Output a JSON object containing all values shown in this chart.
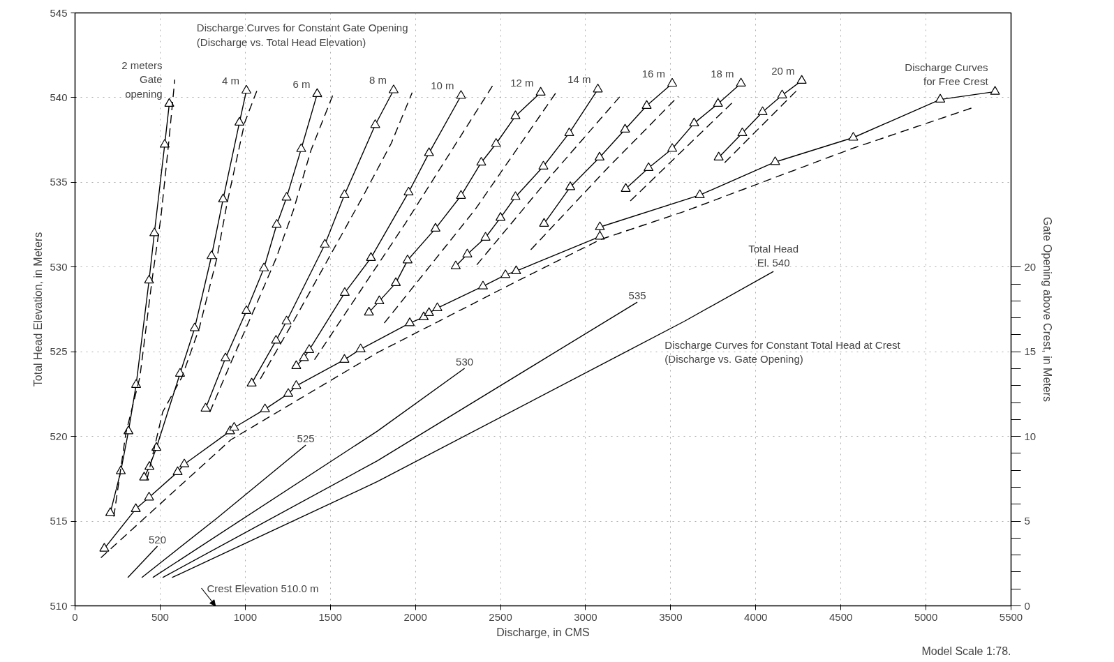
{
  "chart_data": {
    "type": "line",
    "xlabel": "Discharge, in CMS",
    "ylabel": "Total Head Elevation, in Meters",
    "y2label": "Gate Opening above Crest, in Meters",
    "xlim": [
      0,
      5500
    ],
    "xticks": [
      0,
      500,
      1000,
      1500,
      2000,
      2500,
      3000,
      3500,
      4000,
      4500,
      5000,
      5500
    ],
    "ylim": [
      510,
      545
    ],
    "yticks": [
      510,
      515,
      520,
      525,
      530,
      535,
      540,
      545
    ],
    "y2lim": [
      0,
      35
    ],
    "y2ticks": [
      0,
      {
        "value": 1,
        "label": null
      },
      {
        "value": 2,
        "label": null
      },
      {
        "value": 3,
        "label": null
      },
      {
        "value": 4,
        "label": null
      },
      5,
      {
        "value": 6,
        "label": null
      },
      {
        "value": 7,
        "label": null
      },
      {
        "value": 8,
        "label": null
      },
      {
        "value": 9,
        "label": null
      },
      10,
      {
        "value": 11,
        "label": null
      },
      {
        "value": 12,
        "label": null
      },
      {
        "value": 13,
        "label": null
      },
      {
        "value": 14,
        "label": null
      },
      15,
      {
        "value": 16,
        "label": null
      },
      {
        "value": 17,
        "label": null
      },
      {
        "value": 18,
        "label": null
      },
      {
        "value": 19,
        "label": null
      },
      20
    ],
    "grid": true,
    "annotations": [
      "Discharge Curves for Constant Gate Opening\n(Discharge vs. Total Head Elevation)",
      "Discharge Curves for Constant Total Head at Crest\n(Discharge vs. Gate Opening)",
      "Crest Elevation 510.0 m",
      "Model Scale 1:78."
    ],
    "series": [
      {
        "name": "2 meters\nGate\nopening",
        "color": "#000000",
        "line_style": "solid",
        "marker": "triangle",
        "x": [
          207,
          269,
          314,
          359,
          435,
          466,
          527,
          554
        ],
        "values": [
          515.48,
          517.95,
          520.31,
          523.05,
          529.21,
          532.0,
          537.23,
          539.64
        ]
      },
      {
        "color": "#000000",
        "line_style": "dashed",
        "marker": "none",
        "x": [
          228,
          299,
          381,
          453,
          505,
          550,
          586
        ],
        "values": [
          515.27,
          520.21,
          523.5,
          529.27,
          532.97,
          537.3,
          541.06
        ]
      },
      {
        "name": "4 m",
        "color": "#000000",
        "line_style": "solid",
        "marker": "triangle",
        "x": [
          406,
          437,
          478,
          617,
          703,
          802,
          870,
          966,
          1007
        ],
        "values": [
          517.58,
          518.21,
          519.33,
          523.71,
          526.39,
          530.65,
          534.0,
          538.53,
          540.42
        ]
      },
      {
        "color": "#000000",
        "line_style": "dashed",
        "marker": "none",
        "x": [
          422,
          515,
          628,
          730,
          833,
          894,
          997,
          1069
        ],
        "values": [
          517.43,
          521.44,
          523.5,
          526.39,
          530.5,
          533.8,
          538.53,
          540.42
        ]
      },
      {
        "name": "6 m",
        "color": "#000000",
        "line_style": "solid",
        "marker": "triangle",
        "x": [
          767,
          884,
          1007,
          1110,
          1185,
          1243,
          1329,
          1423
        ],
        "values": [
          521.65,
          524.62,
          527.41,
          529.93,
          532.5,
          534.1,
          536.97,
          540.22
        ]
      },
      {
        "color": "#000000",
        "line_style": "dashed",
        "marker": "none",
        "x": [
          792,
          915,
          1058,
          1181,
          1284,
          1386,
          1520
        ],
        "values": [
          521.44,
          524.33,
          527.62,
          530.5,
          533.38,
          536.88,
          540.28
        ]
      },
      {
        "name": "8 m",
        "color": "#000000",
        "line_style": "solid",
        "marker": "triangle",
        "x": [
          1038,
          1181,
          1243,
          1468,
          1583,
          1764,
          1872
        ],
        "values": [
          523.13,
          525.66,
          526.8,
          531.33,
          534.25,
          538.39,
          540.44
        ]
      },
      {
        "color": "#000000",
        "line_style": "dashed",
        "marker": "none",
        "x": [
          1089,
          1284,
          1489,
          1694,
          1858,
          1981
        ],
        "values": [
          523.4,
          526.8,
          530.5,
          534.21,
          537.3,
          540.3
        ]
      },
      {
        "name": "10 m",
        "color": "#000000",
        "line_style": "solid",
        "marker": "triangle",
        "x": [
          1300,
          1345,
          1376,
          1585,
          1739,
          1960,
          2080,
          2268
        ],
        "values": [
          524.16,
          524.63,
          525.11,
          528.48,
          530.54,
          534.41,
          536.73,
          540.11
        ]
      },
      {
        "color": "#000000",
        "line_style": "dashed",
        "marker": "none",
        "x": [
          1407,
          1940,
          2453
        ],
        "values": [
          524.53,
          532.56,
          540.69
        ]
      },
      {
        "name": "12 m",
        "color": "#000000",
        "line_style": "solid",
        "marker": "triangle",
        "x": [
          1727,
          1788,
          1885,
          1954,
          2118,
          2268,
          2387,
          2474,
          2588,
          2736
        ],
        "values": [
          527.32,
          527.99,
          529.06,
          530.4,
          532.27,
          534.21,
          536.17,
          537.28,
          538.91,
          540.3
        ]
      },
      {
        "color": "#000000",
        "line_style": "dashed",
        "marker": "none",
        "x": [
          1817,
          2350,
          2832
        ],
        "values": [
          526.69,
          533.38,
          540.38
        ]
      },
      {
        "name": "14 m",
        "color": "#000000",
        "line_style": "solid",
        "marker": "triangle",
        "x": [
          2237,
          2305,
          2412,
          2500,
          2588,
          2752,
          2904,
          3072
        ],
        "values": [
          530.05,
          530.75,
          531.74,
          532.91,
          534.14,
          535.94,
          537.91,
          540.49
        ]
      },
      {
        "color": "#000000",
        "line_style": "dashed",
        "marker": "none",
        "x": [
          2361,
          2801,
          3212
        ],
        "values": [
          530.13,
          535.44,
          540.18
        ]
      },
      {
        "name": "16 m",
        "color": "#000000",
        "line_style": "solid",
        "marker": "triangle",
        "x": [
          2756,
          2910,
          3082,
          3232,
          3359,
          3509
        ],
        "values": [
          532.56,
          534.72,
          536.47,
          538.12,
          539.52,
          540.83
        ]
      },
      {
        "color": "#000000",
        "line_style": "dashed",
        "marker": "none",
        "x": [
          2678,
          3130,
          3544
        ],
        "values": [
          531.02,
          535.85,
          540.07
        ]
      },
      {
        "name": "18 m",
        "color": "#000000",
        "line_style": "solid",
        "marker": "triangle",
        "x": [
          3236,
          3370,
          3509,
          3638,
          3778,
          3913
        ],
        "values": [
          534.62,
          535.85,
          536.98,
          538.49,
          539.64,
          540.84
        ]
      },
      {
        "color": "#000000",
        "line_style": "dashed",
        "marker": "none",
        "x": [
          3263,
          3868
        ],
        "values": [
          533.9,
          539.76
        ]
      },
      {
        "name": "20 m",
        "color": "#000000",
        "line_style": "solid",
        "marker": "triangle",
        "x": [
          3782,
          3921,
          4040,
          4155,
          4270
        ],
        "values": [
          536.47,
          537.91,
          539.15,
          540.14,
          541.0
        ]
      },
      {
        "color": "#000000",
        "line_style": "dashed",
        "marker": "none",
        "x": [
          3817,
          4247
        ],
        "values": [
          536.16,
          540.48
        ]
      },
      {
        "name": "Discharge Curves\nfor Free Crest",
        "color": "#000000",
        "line_style": "solid",
        "marker": "triangle",
        "x": [
          172,
          357,
          435,
          603,
          642,
          911,
          935,
          1116,
          1253,
          1300,
          1583,
          1678,
          1967,
          2049,
          2080,
          2129,
          2397,
          2529,
          2592,
          3084,
          3084,
          3671,
          4114,
          4573,
          5084,
          5406
        ],
        "values": [
          513.38,
          515.72,
          516.4,
          517.9,
          518.36,
          520.31,
          520.52,
          521.61,
          522.52,
          522.99,
          524.53,
          525.15,
          526.69,
          527.04,
          527.29,
          527.58,
          528.86,
          529.53,
          529.76,
          531.8,
          532.36,
          534.25,
          536.2,
          537.64,
          539.89,
          540.35
        ]
      },
      {
        "color": "#000000",
        "line_style": "dashed",
        "marker": "none",
        "x": [
          152,
          915,
          1776,
          2596,
          3089,
          3581,
          4565,
          5273
        ],
        "values": [
          512.84,
          519.8,
          524.94,
          529.16,
          531.63,
          533.28,
          536.99,
          539.4
        ]
      },
      {
        "name": "520",
        "color": "#000000",
        "line_style": "solid",
        "marker": "none",
        "axis": "y2",
        "x": [
          310,
          484
        ],
        "values": [
          1.67,
          3.52
        ]
      },
      {
        "name": "525",
        "color": "#000000",
        "line_style": "solid",
        "marker": "none",
        "axis": "y2",
        "x": [
          392,
          833,
          1356
        ],
        "values": [
          1.67,
          5.17,
          9.49
        ]
      },
      {
        "name": "530",
        "color": "#000000",
        "line_style": "solid",
        "marker": "none",
        "axis": "y2",
        "x": [
          457,
          1776,
          2289
        ],
        "values": [
          1.67,
          10.31,
          14.02
        ]
      },
      {
        "name": "535",
        "color": "#000000",
        "line_style": "solid",
        "marker": "none",
        "axis": "y2",
        "x": [
          515,
          1776,
          3304
        ],
        "values": [
          1.67,
          8.56,
          17.93
        ]
      },
      {
        "name": "Total Head\nEl. 540",
        "color": "#000000",
        "line_style": "solid",
        "marker": "none",
        "axis": "y2",
        "x": [
          570,
          1776,
          3581,
          4104
        ],
        "values": [
          1.67,
          7.33,
          16.8,
          19.74
        ]
      }
    ]
  }
}
